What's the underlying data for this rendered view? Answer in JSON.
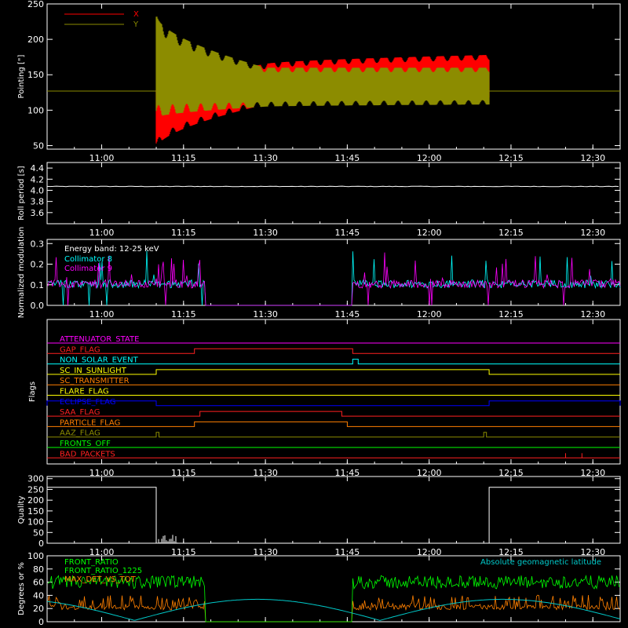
{
  "chart_data": [
    {
      "type": "line",
      "ylabel": "Pointing [\"]",
      "ylim": [
        45,
        250
      ],
      "yticks": [
        50,
        100,
        150,
        200,
        250
      ],
      "xlim": [
        "10:50",
        "12:35"
      ],
      "xticks": [
        "11:00",
        "11:15",
        "11:30",
        "11:45",
        "12:00",
        "12:15",
        "12:30"
      ],
      "baseline_value": 127,
      "active_interval": [
        "11:10",
        "12:11"
      ],
      "series": [
        {
          "name": "X",
          "color": "#ff0000",
          "envelope": [
            [
              11.17,
              48,
              128
            ],
            [
              11.5,
              108,
              165
            ],
            [
              12.18,
              118,
              178
            ]
          ]
        },
        {
          "name": "Y",
          "color": "#8c8c00",
          "envelope": [
            [
              11.17,
              90,
              232
            ],
            [
              11.5,
              105,
              160
            ],
            [
              12.18,
              108,
              160
            ]
          ]
        }
      ]
    },
    {
      "type": "line",
      "ylabel": "Roll period [s]",
      "ylim": [
        3.4,
        4.5
      ],
      "yticks": [
        "3.6",
        "3.8",
        "4.0",
        "4.2",
        "4.4"
      ],
      "value": 4.07,
      "color": "#ffffff"
    },
    {
      "type": "line",
      "ylabel": "Normalized modulation",
      "ylim": [
        0,
        0.32
      ],
      "yticks": [
        "0.0",
        "0.1",
        "0.2",
        "0.3"
      ],
      "annotation": "Energy band: 12-25 keV",
      "series": [
        {
          "name": "Collimator 8",
          "color": "#00ffff"
        },
        {
          "name": "Collimator 9",
          "color": "#ff00ff"
        }
      ],
      "typical_level": 0.1
    },
    {
      "type": "line",
      "ylabel": "Flags",
      "flags": [
        {
          "name": "ATTENUATOR_STATE",
          "color": "#ff00ff"
        },
        {
          "name": "GAP_FLAG",
          "color": "#ff2020"
        },
        {
          "name": "NON_SOLAR_EVENT",
          "color": "#00ffff"
        },
        {
          "name": "SC_IN_SUNLIGHT",
          "color": "#ffff00"
        },
        {
          "name": "SC_TRANSMITTER",
          "color": "#ff7f00"
        },
        {
          "name": "FLARE_FLAG",
          "color": "#ffff00"
        },
        {
          "name": "ECLIPSE_FLAG",
          "color": "#0000ff"
        },
        {
          "name": "SAA_FLAG",
          "color": "#ff2020"
        },
        {
          "name": "PARTICLE_FLAG",
          "color": "#ff7f00"
        },
        {
          "name": "AAZ_FLAG",
          "color": "#8c8c00"
        },
        {
          "name": "FRONTS_OFF",
          "color": "#00ff00"
        },
        {
          "name": "BAD_PACKETS",
          "color": "#ff2020"
        }
      ]
    },
    {
      "type": "line",
      "ylabel": "Quality",
      "ylim": [
        0,
        310
      ],
      "yticks": [
        0,
        50,
        100,
        150,
        200,
        250,
        300
      ],
      "segments": [
        [
          "10:50",
          "11:10",
          260
        ],
        [
          "11:10",
          "12:11",
          0
        ],
        [
          "12:11",
          "12:35",
          260
        ]
      ],
      "color": "#ffffff"
    },
    {
      "type": "line",
      "ylabel": "Degrees or %",
      "ylim": [
        0,
        100
      ],
      "yticks": [
        0,
        20,
        40,
        60,
        80,
        100
      ],
      "annotation": "Absolute geomagnetic latitude",
      "series": [
        {
          "name": "FRONT_RATIO",
          "color": "#00ff00"
        },
        {
          "name": "FRONT_RATIO_1225",
          "color": "#00ff00"
        },
        {
          "name": "MAX_DET_VS_TOT",
          "color": "#ff8000"
        },
        {
          "name": "Absolute geomagnetic latitude",
          "color": "#00c8c8"
        }
      ]
    }
  ]
}
